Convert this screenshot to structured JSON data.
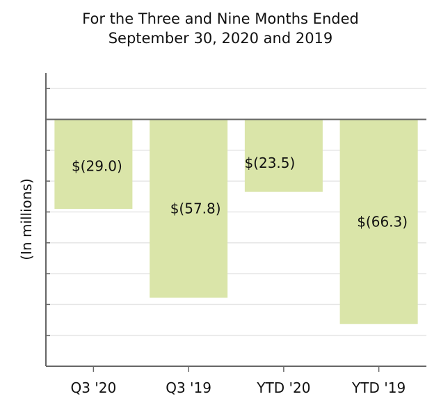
{
  "chart_data": {
    "type": "bar",
    "title_lines": [
      "For the Three and Nine Months Ended",
      "September 30, 2020 and 2019"
    ],
    "xlabel": "",
    "ylabel": "(In millions)",
    "categories": [
      "Q3 '20",
      "Q3 '19",
      "YTD '20",
      "YTD '19"
    ],
    "values": [
      -29.0,
      -57.8,
      -23.5,
      -66.3
    ],
    "data_labels": [
      "$(29.0)",
      "$(57.8)",
      "$(23.5)",
      "$(66.3)"
    ],
    "ylim": [
      -80,
      15
    ],
    "grid": true,
    "bar_color": "#dae5a9",
    "grid_color": "#e6e6e6",
    "axis_color": "#666666"
  }
}
